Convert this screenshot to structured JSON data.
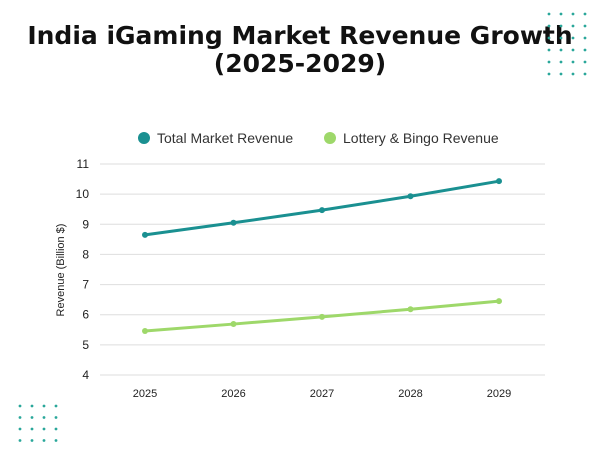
{
  "chart_data": {
    "type": "line",
    "title_lines": [
      "India iGaming Market Revenue Growth",
      "(2025-2029)"
    ],
    "xlabel": "",
    "ylabel": "Revenue (Billion $)",
    "categories": [
      "2025",
      "2026",
      "2027",
      "2028",
      "2029"
    ],
    "ylim": [
      4,
      11
    ],
    "yticks": [
      4,
      5,
      6,
      7,
      8,
      9,
      10,
      11
    ],
    "grid": true,
    "legend_position": "top",
    "series": [
      {
        "name": "Total Market Revenue",
        "color": "#1a9091",
        "values": [
          8.65,
          9.05,
          9.47,
          9.93,
          10.43
        ]
      },
      {
        "name": "Lottery & Bingo Revenue",
        "color": "#9ed86a",
        "values": [
          5.46,
          5.69,
          5.93,
          6.18,
          6.45
        ]
      }
    ]
  },
  "decor": {
    "dot_color": "#2aa79a"
  }
}
